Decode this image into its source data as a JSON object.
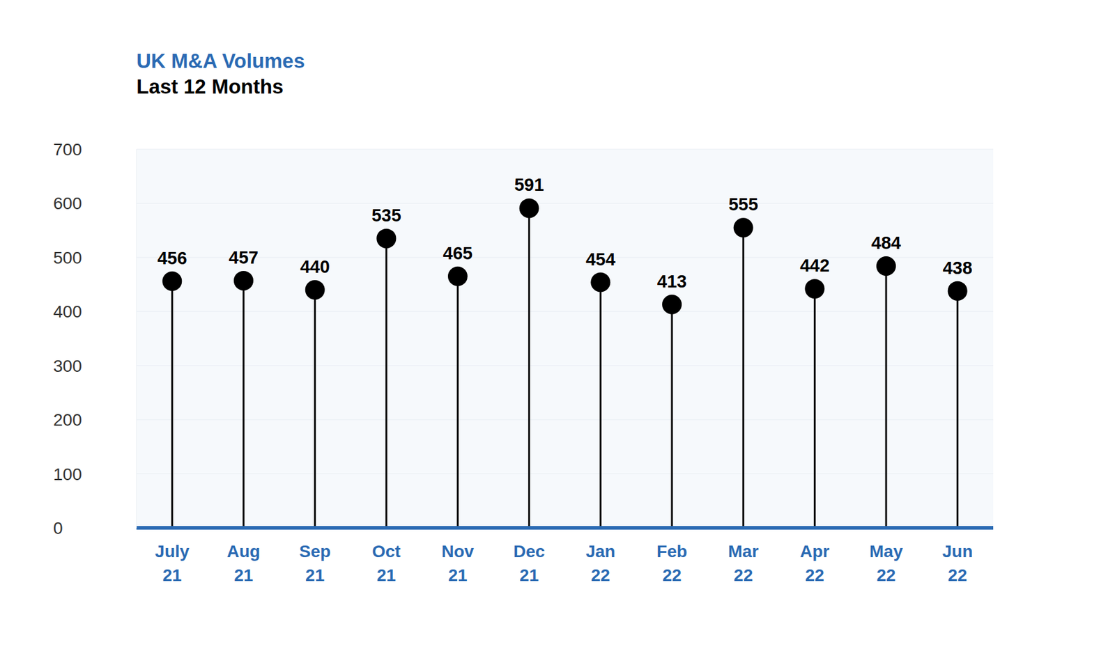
{
  "chart_data": {
    "type": "lollipop",
    "title": "UK M&A Volumes",
    "subtitle": "Last 12 Months",
    "categories": [
      "July 21",
      "Aug 21",
      "Sep 21",
      "Oct 21",
      "Nov 21",
      "Dec 21",
      "Jan 22",
      "Feb 22",
      "Mar 22",
      "Apr 22",
      "May 22",
      "Jun 22"
    ],
    "values": [
      456,
      457,
      440,
      535,
      465,
      591,
      454,
      413,
      555,
      442,
      484,
      438
    ],
    "color": "#000000",
    "ylim": [
      0,
      700
    ],
    "yticks": [
      0,
      100,
      200,
      300,
      400,
      500,
      600,
      700
    ],
    "grid": true,
    "data_labels": true
  }
}
